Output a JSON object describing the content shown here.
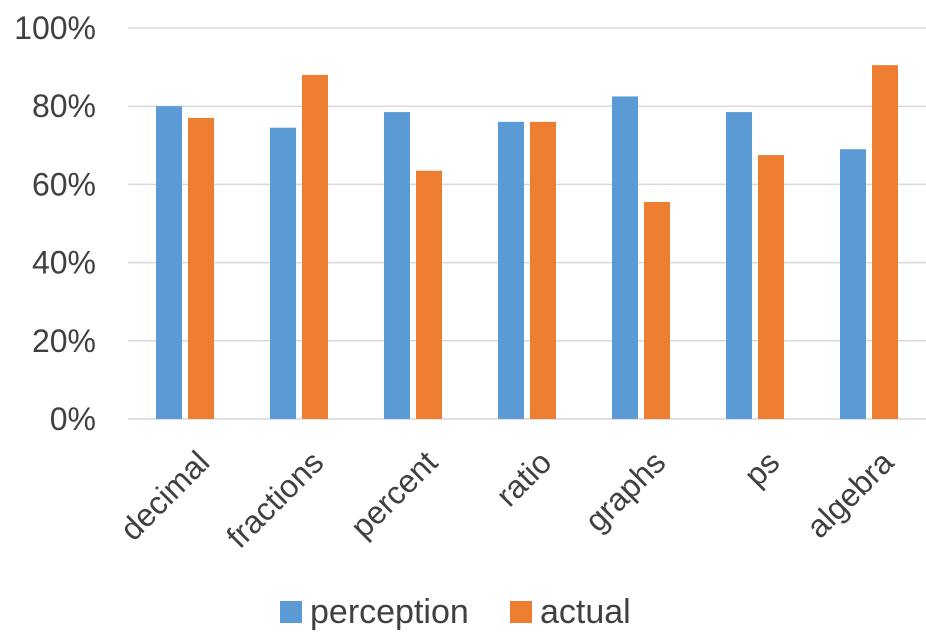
{
  "chart_data": {
    "type": "bar",
    "categories": [
      "decimal",
      "fractions",
      "percent",
      "ratio",
      "graphs",
      "ps",
      "algebra"
    ],
    "series": [
      {
        "name": "perception",
        "values": [
          0.8,
          0.745,
          0.785,
          0.76,
          0.825,
          0.785,
          0.69
        ],
        "color": "#5B9BD5"
      },
      {
        "name": "actual",
        "values": [
          0.77,
          0.88,
          0.635,
          0.76,
          0.555,
          0.675,
          0.905
        ],
        "color": "#ED7D31"
      }
    ],
    "ylim": [
      0,
      1
    ],
    "yticks": [
      "0%",
      "20%",
      "40%",
      "60%",
      "80%",
      "100%"
    ],
    "grid": true,
    "legend_position": "bottom"
  }
}
